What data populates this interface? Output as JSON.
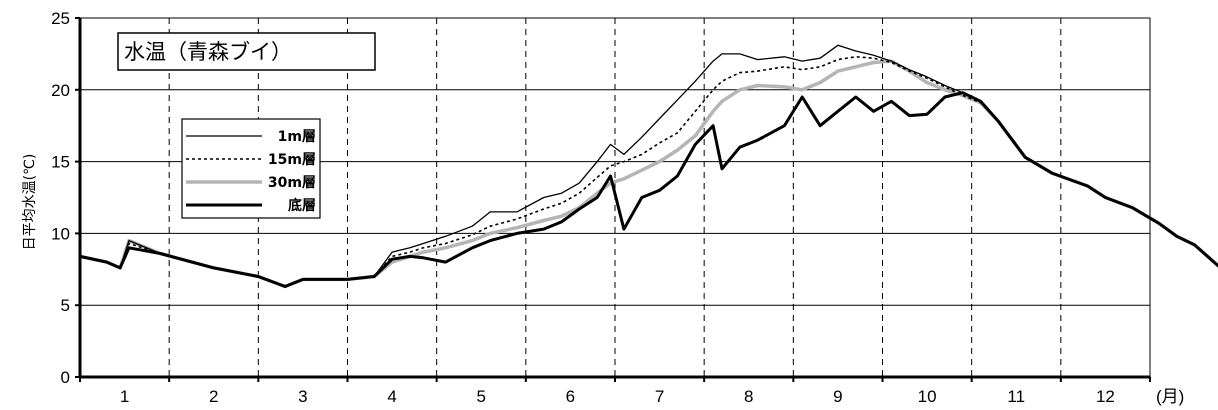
{
  "chart_data": {
    "type": "line",
    "title": "水温（青森ブイ）",
    "ylabel": "日平均水温(℃)",
    "xunit": "(月)",
    "ylim": [
      0,
      25
    ],
    "yticks": [
      0,
      5,
      10,
      15,
      20,
      25
    ],
    "categories": [
      "1",
      "2",
      "3",
      "4",
      "5",
      "6",
      "7",
      "8",
      "9",
      "10",
      "11",
      "12"
    ],
    "grid": "horizontal solid, monthly dashed",
    "legend_placement": "upper-left",
    "series": [
      {
        "name": "1m層",
        "style": "thin-solid",
        "x": [
          0.0,
          0.3,
          0.45,
          0.55,
          0.9,
          1.5,
          2.0,
          2.3,
          2.5,
          3.0,
          3.3,
          3.5,
          3.7,
          3.85,
          4.1,
          4.4,
          4.6,
          4.9,
          5.2,
          5.4,
          5.6,
          5.8,
          5.95,
          6.1,
          6.3,
          6.5,
          6.7,
          6.9,
          7.1,
          7.2,
          7.4,
          7.6,
          7.9,
          8.1,
          8.3,
          8.5,
          8.7,
          8.9,
          9.1,
          9.3,
          9.5,
          9.7,
          9.9,
          10.1,
          10.3,
          10.6,
          10.9,
          11.3,
          11.5,
          11.8,
          12.1,
          12.3,
          12.5,
          12.9
        ],
        "y": [
          8.4,
          8.0,
          7.6,
          9.5,
          8.6,
          7.6,
          7.0,
          6.3,
          6.8,
          6.8,
          7.0,
          8.7,
          9.0,
          9.3,
          9.8,
          10.5,
          11.5,
          11.5,
          12.5,
          12.8,
          13.5,
          15.0,
          16.2,
          15.5,
          16.7,
          18.0,
          19.3,
          20.6,
          22.0,
          22.5,
          22.5,
          22.1,
          22.3,
          22.0,
          22.2,
          23.1,
          22.7,
          22.4,
          22.0,
          21.4,
          20.9,
          20.3,
          19.8,
          19.2,
          17.8,
          15.3,
          14.2,
          13.3,
          12.5,
          11.8,
          10.7,
          9.8,
          9.2,
          7.0
        ]
      },
      {
        "name": "15m層",
        "style": "dotted",
        "x": [
          0.0,
          0.3,
          0.45,
          0.55,
          0.9,
          1.5,
          2.0,
          2.3,
          2.5,
          3.0,
          3.3,
          3.5,
          3.7,
          3.85,
          4.1,
          4.4,
          4.6,
          4.9,
          5.2,
          5.4,
          5.6,
          5.8,
          5.95,
          6.1,
          6.3,
          6.5,
          6.7,
          6.9,
          7.1,
          7.2,
          7.4,
          7.6,
          7.9,
          8.1,
          8.3,
          8.5,
          8.7,
          8.9,
          9.1,
          9.3,
          9.5,
          9.7,
          9.9,
          10.1,
          10.3,
          10.6,
          10.9,
          11.3,
          11.5,
          11.8,
          12.1,
          12.3,
          12.5,
          12.9
        ],
        "y": [
          8.4,
          8.0,
          7.6,
          9.3,
          8.6,
          7.6,
          7.0,
          6.3,
          6.8,
          6.8,
          7.0,
          8.4,
          8.7,
          9.0,
          9.3,
          9.9,
          10.5,
          11.0,
          11.7,
          12.1,
          12.8,
          13.9,
          14.7,
          15.0,
          15.5,
          16.3,
          17.0,
          18.5,
          20.0,
          20.6,
          21.2,
          21.3,
          21.6,
          21.4,
          21.6,
          22.1,
          22.3,
          22.2,
          21.9,
          21.3,
          20.8,
          20.2,
          19.6,
          19.1,
          17.8,
          15.3,
          14.2,
          13.3,
          12.5,
          11.8,
          10.7,
          9.8,
          9.2,
          7.0
        ]
      },
      {
        "name": "30m層",
        "style": "thick-gray",
        "x": [
          0.0,
          0.3,
          0.45,
          0.55,
          0.9,
          1.5,
          2.0,
          2.3,
          2.5,
          3.0,
          3.3,
          3.5,
          3.7,
          3.85,
          4.1,
          4.4,
          4.6,
          4.9,
          5.2,
          5.4,
          5.6,
          5.8,
          5.95,
          6.1,
          6.3,
          6.5,
          6.7,
          6.9,
          7.1,
          7.2,
          7.4,
          7.6,
          7.9,
          8.1,
          8.3,
          8.5,
          8.7,
          8.9,
          9.1,
          9.3,
          9.5,
          9.7,
          9.9,
          10.1,
          10.3,
          10.6,
          10.9,
          11.3,
          11.5,
          11.8,
          12.1,
          12.3,
          12.5,
          12.9
        ],
        "y": [
          8.4,
          8.0,
          7.6,
          9.5,
          8.6,
          7.6,
          7.0,
          6.3,
          6.8,
          6.8,
          7.0,
          8.0,
          8.4,
          8.7,
          9.0,
          9.5,
          10.0,
          10.4,
          10.9,
          11.2,
          11.8,
          12.8,
          13.5,
          13.8,
          14.4,
          15.0,
          15.8,
          16.8,
          18.5,
          19.2,
          20.0,
          20.3,
          20.2,
          20.0,
          20.5,
          21.3,
          21.6,
          21.9,
          22.0,
          21.3,
          20.5,
          20.0,
          19.6,
          19.1,
          17.8,
          15.3,
          14.2,
          13.3,
          12.5,
          11.8,
          10.7,
          9.8,
          9.2,
          7.0
        ]
      },
      {
        "name": "底層",
        "style": "thick-black",
        "x": [
          0.0,
          0.3,
          0.45,
          0.55,
          0.9,
          1.5,
          2.0,
          2.3,
          2.5,
          3.0,
          3.3,
          3.5,
          3.7,
          3.85,
          4.1,
          4.4,
          4.6,
          4.9,
          5.2,
          5.4,
          5.6,
          5.8,
          5.95,
          6.1,
          6.3,
          6.5,
          6.7,
          6.9,
          7.1,
          7.2,
          7.4,
          7.6,
          7.9,
          8.1,
          8.3,
          8.5,
          8.7,
          8.9,
          9.1,
          9.3,
          9.5,
          9.7,
          9.9,
          10.1,
          10.3,
          10.6,
          10.9,
          11.3,
          11.5,
          11.8,
          12.1,
          12.3,
          12.5,
          12.9
        ],
        "y": [
          8.4,
          8.0,
          7.6,
          9.0,
          8.6,
          7.6,
          7.0,
          6.3,
          6.8,
          6.8,
          7.0,
          8.2,
          8.4,
          8.3,
          8.0,
          9.0,
          9.5,
          10.0,
          10.3,
          10.8,
          11.7,
          12.5,
          14.0,
          10.3,
          12.5,
          13.0,
          14.0,
          16.2,
          17.5,
          14.5,
          16.0,
          16.5,
          17.5,
          19.5,
          17.5,
          18.5,
          19.5,
          18.5,
          19.2,
          18.2,
          18.3,
          19.5,
          19.8,
          19.2,
          17.8,
          15.3,
          14.2,
          13.3,
          12.5,
          11.8,
          10.7,
          9.8,
          9.2,
          7.0
        ]
      }
    ]
  }
}
